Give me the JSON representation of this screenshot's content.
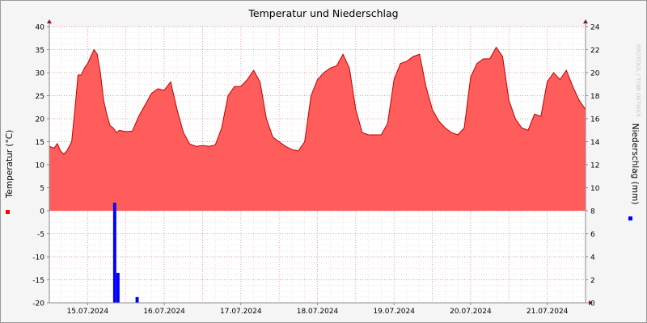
{
  "chart_data": {
    "type": "area",
    "title": "Temperatur und Niederschlag",
    "watermark": "RRDTOOL / TOBI OETIKER",
    "ylabel_left": "Temperatur (°C)",
    "ylabel_right": "Niederschlag (mm)",
    "ylim_left": [
      -20,
      40
    ],
    "ylim_right": [
      0,
      24
    ],
    "yticks_left": [
      -20,
      -15,
      -10,
      -5,
      0,
      5,
      10,
      15,
      20,
      25,
      30,
      35,
      40
    ],
    "yticks_right": [
      0,
      2,
      4,
      6,
      8,
      10,
      12,
      14,
      16,
      18,
      20,
      22,
      24
    ],
    "x_range_hours": [
      0,
      168
    ],
    "xlabels": [
      "15.07.2024",
      "16.07.2024",
      "17.07.2024",
      "18.07.2024",
      "19.07.2024",
      "20.07.2024",
      "21.07.2024"
    ],
    "grid": true,
    "colors": {
      "temperature_fill": "#ff5c5c",
      "temperature_line": "#c00000",
      "precip": "#0000ff",
      "grid_minor": "#e4c8c8",
      "grid_major": "#e08080",
      "axis": "#8a8a8a"
    },
    "series": [
      {
        "name": "Temperatur",
        "unit": "°C",
        "axis": "left",
        "hours": [
          0,
          1.5,
          2.5,
          3.5,
          4.5,
          5.5,
          7,
          8,
          9,
          10,
          11,
          12,
          13,
          14,
          15,
          16,
          17,
          18,
          19,
          20,
          21,
          22,
          23,
          24,
          26,
          28,
          30,
          32,
          34,
          36,
          38,
          40,
          42,
          44,
          46,
          48,
          50,
          52,
          54,
          56,
          58,
          60,
          62,
          64,
          66,
          68,
          70,
          72,
          74,
          76,
          78,
          80,
          82,
          84,
          86,
          88,
          90,
          92,
          94,
          96,
          98,
          100,
          102,
          104,
          106,
          108,
          110,
          112,
          114,
          116,
          118,
          120,
          122,
          124,
          126,
          128,
          130,
          132,
          134,
          136,
          138,
          140,
          142,
          144,
          146,
          148,
          150,
          152,
          154,
          156,
          158,
          160,
          162,
          164,
          166,
          168
        ],
        "values": [
          14,
          13.6,
          14.6,
          13,
          12.3,
          13,
          15,
          22,
          29.5,
          29.5,
          31,
          32,
          33.5,
          35,
          34,
          30,
          24,
          21,
          18.5,
          18,
          17,
          17.5,
          17.3,
          17.2,
          17.3,
          20.5,
          23,
          25.5,
          26.5,
          26.2,
          28,
          22,
          17,
          14.5,
          14,
          14.2,
          14,
          14.3,
          18,
          25,
          27,
          27,
          28.5,
          30.5,
          28,
          20,
          16,
          15,
          14,
          13.3,
          13,
          15,
          25,
          28.5,
          30,
          31,
          31.5,
          34,
          31,
          22,
          17,
          16.5,
          16.5,
          16.5,
          19,
          28.5,
          32,
          32.5,
          33.5,
          34,
          27,
          22,
          19.5,
          18,
          17,
          16.5,
          18,
          29,
          32,
          33,
          33,
          35.5,
          33.5,
          24,
          20,
          18,
          17.5,
          21,
          20.5,
          28,
          30,
          28.5,
          30.5,
          27,
          24,
          22
        ]
      },
      {
        "name": "Niederschlag",
        "unit": "mm",
        "axis": "right",
        "bars": [
          {
            "hour": 20.5,
            "value": 8.7
          },
          {
            "hour": 21.5,
            "value": 2.6
          },
          {
            "hour": 27.5,
            "value": 0.5
          }
        ]
      }
    ]
  }
}
